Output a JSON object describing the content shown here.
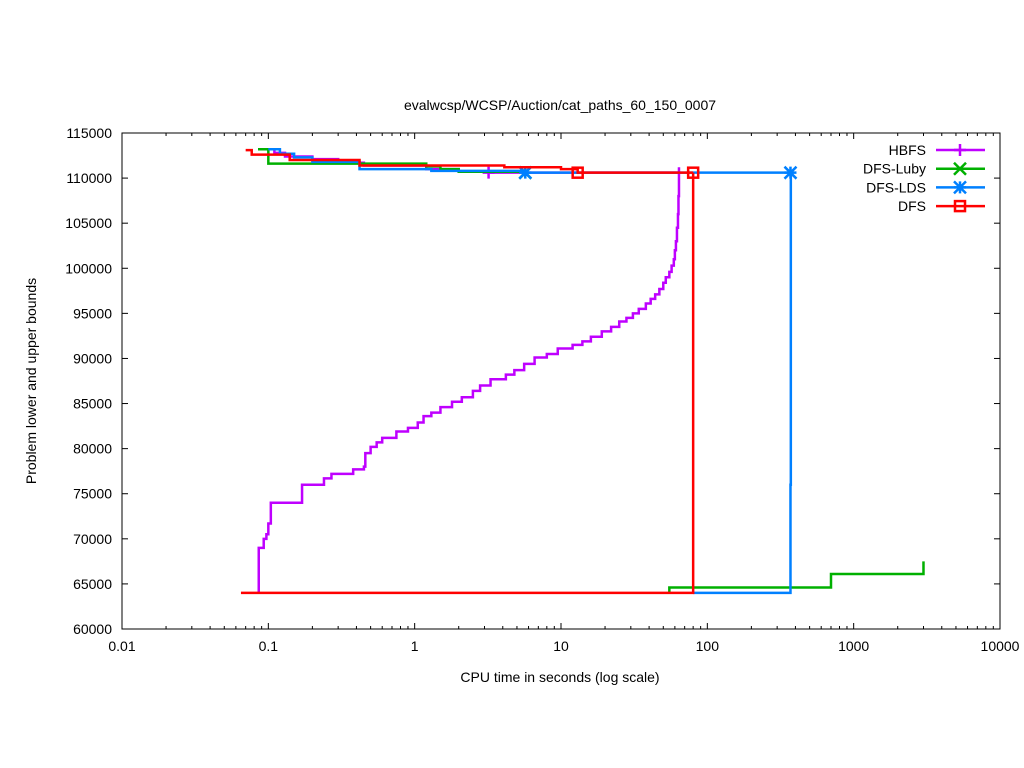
{
  "chart_data": {
    "type": "line",
    "title": "evalwcsp/WCSP/Auction/cat_paths_60_150_0007",
    "xlabel": "CPU time in seconds (log scale)",
    "ylabel": "Problem lower and upper bounds",
    "xscale": "log",
    "xlim": [
      0.01,
      10000
    ],
    "ylim": [
      60000,
      115000
    ],
    "xticks": [
      "0.01",
      "0.1",
      "1",
      "10",
      "100",
      "1000",
      "10000"
    ],
    "xtick_values": [
      0.01,
      0.1,
      1,
      10,
      100,
      1000,
      10000
    ],
    "yticks": [
      "60000",
      "65000",
      "70000",
      "75000",
      "80000",
      "85000",
      "90000",
      "95000",
      "100000",
      "105000",
      "110000",
      "115000"
    ],
    "ytick_values": [
      60000,
      65000,
      70000,
      75000,
      80000,
      85000,
      90000,
      95000,
      100000,
      105000,
      110000,
      115000
    ],
    "grid": false,
    "legend_position": "top-right",
    "series": [
      {
        "name": "HBFS",
        "color": "#bf00ff",
        "marker": "plus",
        "upper": [
          [
            0.1,
            113200
          ],
          [
            0.11,
            112800
          ],
          [
            0.13,
            112400
          ],
          [
            0.2,
            112100
          ],
          [
            0.3,
            111700
          ],
          [
            0.45,
            111400
          ],
          [
            1.2,
            111000
          ],
          [
            2,
            110700
          ],
          [
            3.2,
            110600
          ],
          [
            64,
            110600
          ]
        ],
        "lower": [
          [
            0.086,
            64000
          ],
          [
            0.086,
            69000
          ],
          [
            0.093,
            70000
          ],
          [
            0.097,
            70500
          ],
          [
            0.1,
            71700
          ],
          [
            0.104,
            74000
          ],
          [
            0.17,
            76000
          ],
          [
            0.24,
            76700
          ],
          [
            0.27,
            77200
          ],
          [
            0.38,
            77700
          ],
          [
            0.45,
            78000
          ],
          [
            0.46,
            79500
          ],
          [
            0.5,
            80200
          ],
          [
            0.55,
            80700
          ],
          [
            0.6,
            81200
          ],
          [
            0.75,
            81900
          ],
          [
            0.9,
            82300
          ],
          [
            1.05,
            82900
          ],
          [
            1.15,
            83600
          ],
          [
            1.3,
            84000
          ],
          [
            1.5,
            84600
          ],
          [
            1.8,
            85200
          ],
          [
            2.1,
            85700
          ],
          [
            2.5,
            86400
          ],
          [
            2.8,
            87000
          ],
          [
            3.3,
            87700
          ],
          [
            4.2,
            88200
          ],
          [
            4.8,
            88700
          ],
          [
            5.6,
            89400
          ],
          [
            6.6,
            90100
          ],
          [
            8,
            90500
          ],
          [
            9.5,
            91100
          ],
          [
            12,
            91500
          ],
          [
            14,
            91900
          ],
          [
            16,
            92400
          ],
          [
            19,
            93000
          ],
          [
            22,
            93500
          ],
          [
            25,
            94100
          ],
          [
            28,
            94500
          ],
          [
            31,
            95000
          ],
          [
            34,
            95500
          ],
          [
            38,
            96100
          ],
          [
            41,
            96600
          ],
          [
            44,
            97100
          ],
          [
            47,
            97700
          ],
          [
            50,
            98400
          ],
          [
            52,
            99000
          ],
          [
            55,
            99600
          ],
          [
            57,
            100300
          ],
          [
            59,
            101000
          ],
          [
            60,
            102000
          ],
          [
            61,
            103000
          ],
          [
            62,
            104500
          ],
          [
            63,
            106000
          ],
          [
            63.5,
            108000
          ],
          [
            64,
            111200
          ]
        ],
        "markers": [
          [
            3.2,
            110600
          ]
        ]
      },
      {
        "name": "DFS-Luby",
        "color": "#00b000",
        "marker": "cross",
        "upper": [
          [
            0.085,
            113200
          ],
          [
            0.1,
            111600
          ],
          [
            1.2,
            111300
          ],
          [
            1.5,
            111000
          ],
          [
            2,
            110700
          ],
          [
            5.7,
            110600
          ]
        ],
        "lower": [
          [
            55,
            64000
          ],
          [
            55,
            64600
          ],
          [
            700,
            66100
          ],
          [
            3000,
            67500
          ]
        ],
        "markers": [
          [
            5.7,
            110600
          ]
        ]
      },
      {
        "name": "DFS-LDS",
        "color": "#0080ff",
        "marker": "star",
        "upper": [
          [
            0.1,
            113200
          ],
          [
            0.12,
            112700
          ],
          [
            0.15,
            112300
          ],
          [
            0.2,
            111800
          ],
          [
            0.42,
            111000
          ],
          [
            1.3,
            110800
          ],
          [
            5.7,
            110600
          ],
          [
            370,
            110600
          ]
        ],
        "lower": [
          [
            80,
            64000
          ],
          [
            370,
            76000
          ],
          [
            372,
            110600
          ]
        ],
        "markers": [
          [
            5.7,
            110600
          ],
          [
            370,
            110600
          ]
        ]
      },
      {
        "name": "DFS",
        "color": "#ff0000",
        "marker": "square",
        "upper": [
          [
            0.07,
            113100
          ],
          [
            0.077,
            112600
          ],
          [
            0.14,
            112000
          ],
          [
            0.42,
            111400
          ],
          [
            4.1,
            111200
          ],
          [
            10,
            111000
          ],
          [
            13,
            110600
          ],
          [
            80,
            110600
          ]
        ],
        "lower": [
          [
            0.065,
            64000
          ],
          [
            80,
            64000
          ],
          [
            80,
            110600
          ]
        ],
        "markers": [
          [
            13,
            110600
          ],
          [
            80,
            110600
          ]
        ]
      }
    ]
  }
}
